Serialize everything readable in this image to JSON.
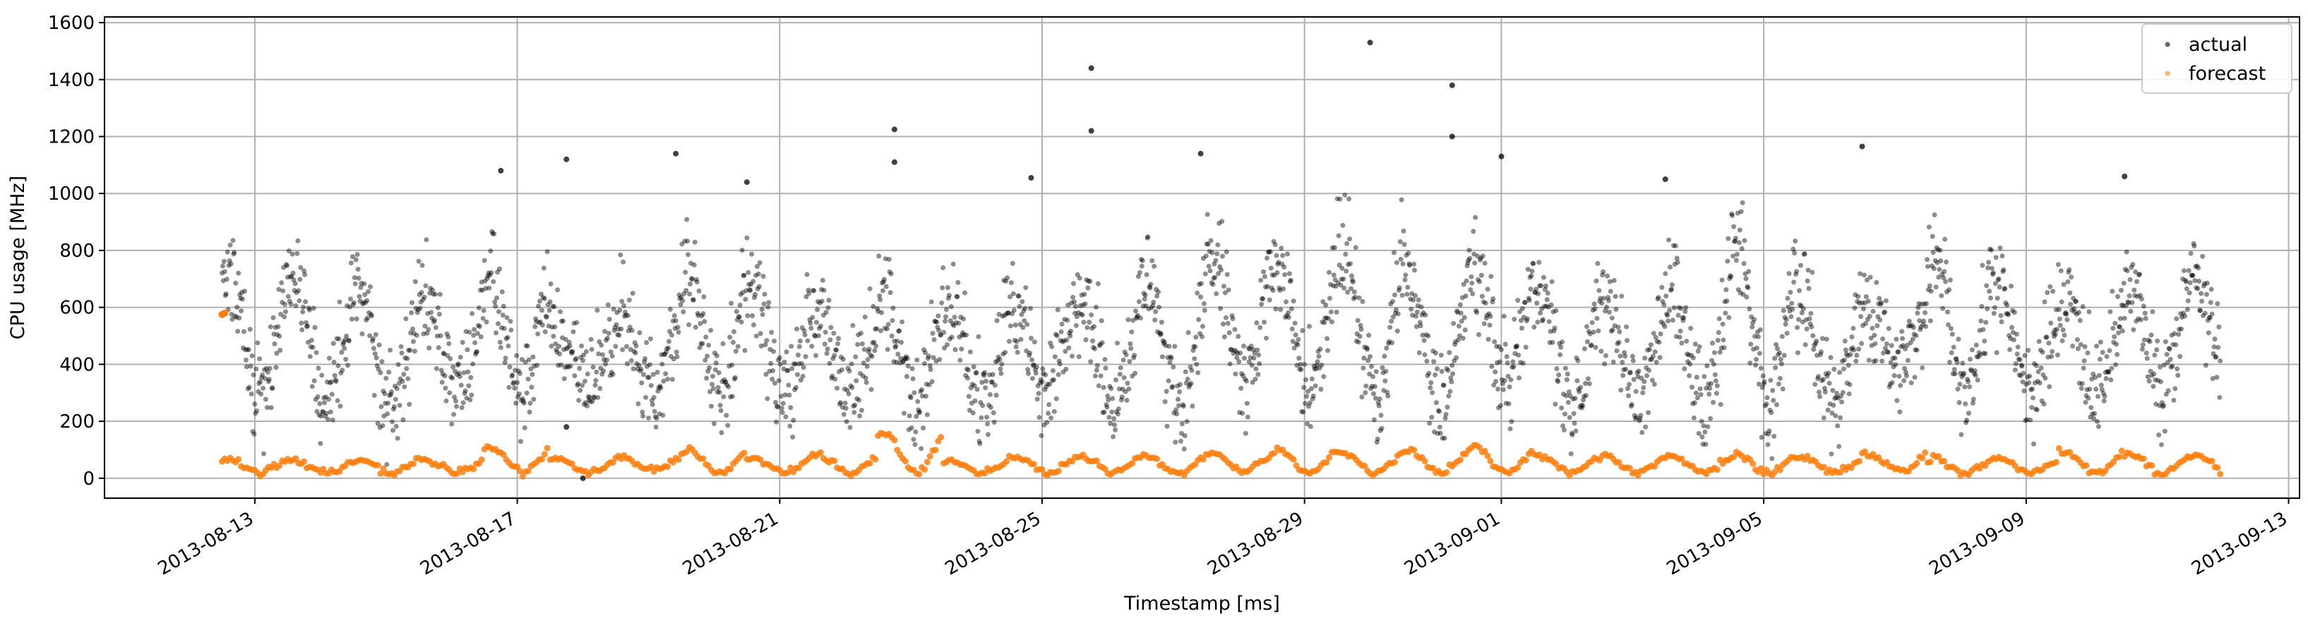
{
  "chart_data": {
    "type": "scatter",
    "xlabel": "Timestamp [ms]",
    "ylabel": "CPU usage [MHz]",
    "x_range": [
      "2013-08-10T17:00",
      "2013-09-13T04:00"
    ],
    "ylim": [
      -70,
      1620
    ],
    "x_tick_labels": [
      "2013-08-13",
      "2013-08-17",
      "2013-08-21",
      "2013-08-25",
      "2013-08-29",
      "2013-09-01",
      "2013-09-05",
      "2013-09-09",
      "2013-09-13"
    ],
    "y_ticks": [
      0,
      200,
      400,
      600,
      800,
      1000,
      1200,
      1400,
      1600
    ],
    "grid": true,
    "legend_position": "top-right",
    "data_start": "2013-08-12T12:00",
    "data_end": "2013-09-11T23:00",
    "series": [
      {
        "name": "actual",
        "color": "#000000",
        "marker": "dot",
        "description_note": "hourly samples with daily oscillation roughly 250-800 MHz",
        "x_unit": "datetime",
        "points_per_day": 96,
        "daily_low": [
          290,
          270,
          260,
          300,
          270,
          330,
          300,
          280,
          290,
          320,
          260,
          250,
          300,
          280,
          290,
          310,
          320,
          300,
          280,
          330,
          260,
          300,
          250,
          270,
          260,
          380,
          300,
          300,
          310,
          310
        ],
        "daily_high": [
          720,
          700,
          640,
          650,
          700,
          540,
          560,
          720,
          620,
          560,
          680,
          620,
          600,
          640,
          700,
          760,
          760,
          800,
          700,
          740,
          640,
          600,
          680,
          820,
          620,
          600,
          780,
          640,
          620,
          700
        ],
        "outliers": [
          {
            "x": "2013-08-25T18:00",
            "y": 1440
          },
          {
            "x": "2013-08-25T18:00",
            "y": 1220
          },
          {
            "x": "2013-08-30T00:00",
            "y": 1530
          },
          {
            "x": "2013-08-31T06:00",
            "y": 1380
          },
          {
            "x": "2013-08-31T06:00",
            "y": 1200
          },
          {
            "x": "2013-08-22T18:00",
            "y": 1225
          },
          {
            "x": "2013-08-22T18:00",
            "y": 1110
          },
          {
            "x": "2013-09-06T12:00",
            "y": 1165
          },
          {
            "x": "2013-08-27T10:00",
            "y": 1140
          },
          {
            "x": "2013-08-17T18:00",
            "y": 1120
          },
          {
            "x": "2013-08-19T10:00",
            "y": 1140
          },
          {
            "x": "2013-09-01T00:00",
            "y": 1130
          },
          {
            "x": "2013-09-10T12:00",
            "y": 1060
          },
          {
            "x": "2013-08-16T18:00",
            "y": 1080
          },
          {
            "x": "2013-08-24T20:00",
            "y": 1055
          },
          {
            "x": "2013-09-03T12:00",
            "y": 1050
          },
          {
            "x": "2013-08-20T12:00",
            "y": 1040
          },
          {
            "x": "2013-08-17T18:00",
            "y": 180
          },
          {
            "x": "2013-08-18T00:00",
            "y": 0
          }
        ]
      },
      {
        "name": "forecast",
        "color": "#ff7f0e",
        "marker": "dot",
        "x_unit": "datetime",
        "points_per_day": 24,
        "daily_low": [
          20,
          20,
          20,
          20,
          20,
          20,
          30,
          20,
          20,
          20,
          20,
          20,
          20,
          20,
          20,
          20,
          20,
          20,
          20,
          20,
          20,
          20,
          20,
          20,
          20,
          30,
          20,
          20,
          20,
          20
        ],
        "daily_high": [
          70,
          65,
          65,
          65,
          110,
          70,
          75,
          100,
          75,
          80,
          160,
          65,
          75,
          80,
          75,
          90,
          100,
          90,
          100,
          110,
          80,
          75,
          80,
          85,
          75,
          85,
          70,
          70,
          95,
          80
        ],
        "first_points": [
          {
            "x": "2013-08-12T12:00",
            "y": 575
          },
          {
            "x": "2013-08-12T13:00",
            "y": 580
          }
        ]
      }
    ]
  }
}
